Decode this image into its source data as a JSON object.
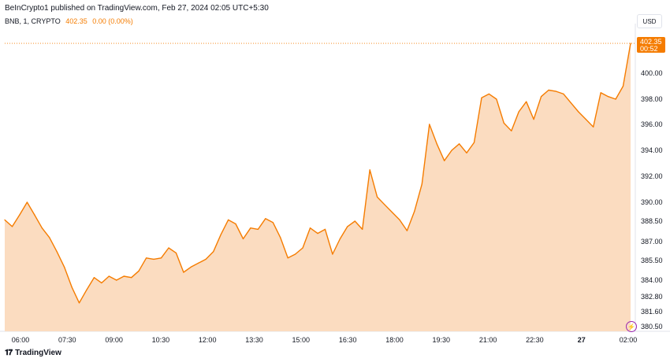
{
  "header": {
    "published_line": "BeInCrypto1 published on TradingView.com, Feb 27, 2024 02:05 UTC+5:30",
    "symbol_line": "BNB, 1, CRYPTO",
    "last_value": "402.35",
    "change": "0.00 (0.00%)",
    "currency": "USD"
  },
  "price_label": {
    "price": "402.35",
    "countdown": "00:52"
  },
  "footer": {
    "logo_text": "TradingView",
    "logo_icon": "tradingview-logo-icon"
  },
  "colors": {
    "line": "#f57c00",
    "fill": "#fbdcc0",
    "price_tag": "#f57c00"
  },
  "chart_data": {
    "type": "area",
    "title": "",
    "xlabel": "",
    "ylabel": "",
    "x_tick_labels": [
      "06:00",
      "07:30",
      "09:00",
      "10:30",
      "12:00",
      "13:30",
      "15:00",
      "16:30",
      "18:00",
      "19:30",
      "21:00",
      "22:30",
      "27",
      "02:00"
    ],
    "y_ticks": [
      380.5,
      381.6,
      382.8,
      384.0,
      385.5,
      387.0,
      388.5,
      390.0,
      392.0,
      394.0,
      396.0,
      398.0,
      400.0
    ],
    "ylim": [
      380.0,
      403.0
    ],
    "grid": false,
    "series": [
      {
        "values": [
          388.6,
          388.1,
          389.0,
          390.0,
          389.0,
          388.0,
          387.3,
          386.2,
          385.0,
          383.5,
          382.3,
          383.3,
          384.2,
          383.8,
          384.3,
          384.0,
          384.3,
          384.2,
          384.7,
          385.7,
          385.6,
          385.7,
          386.5,
          386.1,
          384.6,
          385.0,
          385.3,
          385.6,
          386.2,
          387.5,
          388.6,
          388.3,
          387.2,
          388.0,
          387.9,
          388.7,
          388.4,
          387.3,
          385.7,
          386.0,
          386.5,
          388.0,
          387.6,
          387.9,
          386.0,
          387.2,
          388.1,
          388.5,
          387.9,
          392.5,
          390.4,
          389.8,
          389.2,
          388.6,
          387.8,
          389.3,
          391.4,
          396.0,
          394.5,
          393.2,
          394.0,
          394.5,
          393.8,
          394.6,
          398.1,
          398.4,
          398.0,
          396.1,
          395.5,
          397.0,
          397.8,
          396.4,
          398.2,
          398.7,
          398.6,
          398.4,
          397.7,
          397.0,
          396.4,
          395.8,
          398.5,
          398.2,
          398.0,
          399.0,
          402.3
        ]
      }
    ]
  }
}
